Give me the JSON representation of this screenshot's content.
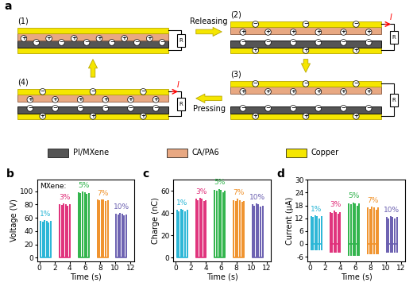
{
  "diagram": {
    "panel_label": "a",
    "positive": "+",
    "negative": "−",
    "resistor": "R",
    "states": [
      {
        "label": "(1)"
      },
      {
        "label": "(2)",
        "current": "I"
      },
      {
        "label": "(3)"
      },
      {
        "label": "(4)",
        "current": "I"
      }
    ],
    "transitions": [
      "Releasing",
      "Pressing"
    ],
    "legend": [
      {
        "name": "PI/MXene",
        "color": "#555555"
      },
      {
        "name": "CA/PA6",
        "color": "#e8a882"
      },
      {
        "name": "Copper",
        "color": "#f5e600"
      }
    ]
  },
  "chart_data": [
    {
      "type": "spike",
      "panel_label": "b",
      "annotation": "MXene:",
      "xlabel": "Time (s)",
      "ylabel": "Voltage (V)",
      "xlim": [
        -0.3,
        12.5
      ],
      "xticks": [
        0,
        2,
        4,
        6,
        8,
        10,
        12
      ],
      "ylim": [
        -5,
        117
      ],
      "yticks": [
        0,
        20,
        40,
        60,
        80,
        100
      ],
      "series": [
        {
          "name": "1%",
          "color": "#29b6d6",
          "x": [
            0.15,
            0.42,
            0.69,
            0.96,
            1.23,
            1.5
          ],
          "values": [
            55,
            54,
            56,
            55,
            53,
            55
          ]
        },
        {
          "name": "3%",
          "color": "#e0307a",
          "x": [
            2.65,
            2.92,
            3.19,
            3.46,
            3.73,
            4.0
          ],
          "values": [
            80,
            79,
            81,
            80,
            78,
            80
          ]
        },
        {
          "name": "5%",
          "color": "#2fb34a",
          "x": [
            5.15,
            5.42,
            5.69,
            5.96,
            6.23,
            6.5
          ],
          "values": [
            98,
            97,
            99,
            98,
            96,
            97
          ]
        },
        {
          "name": "7%",
          "color": "#f0922b",
          "x": [
            7.65,
            7.92,
            8.19,
            8.46,
            8.73,
            9.0
          ],
          "values": [
            87,
            86,
            88,
            87,
            85,
            86
          ]
        },
        {
          "name": "10%",
          "color": "#6a5fb0",
          "x": [
            10.1,
            10.37,
            10.64,
            10.91,
            11.18,
            11.45
          ],
          "values": [
            66,
            65,
            67,
            66,
            64,
            65
          ]
        }
      ]
    },
    {
      "type": "spike",
      "panel_label": "c",
      "xlabel": "Time (s)",
      "ylabel": "Charge (nC)",
      "xlim": [
        -0.3,
        12.5
      ],
      "xticks": [
        0,
        2,
        4,
        6,
        8,
        10,
        12
      ],
      "ylim": [
        -3,
        70
      ],
      "yticks": [
        0,
        20,
        40,
        60
      ],
      "series": [
        {
          "name": "1%",
          "color": "#29b6d6",
          "x": [
            0.15,
            0.42,
            0.69,
            0.96,
            1.23,
            1.5
          ],
          "values": [
            43,
            42,
            44,
            43,
            42,
            43
          ]
        },
        {
          "name": "3%",
          "color": "#e0307a",
          "x": [
            2.65,
            2.92,
            3.19,
            3.46,
            3.73,
            4.0
          ],
          "values": [
            53,
            52,
            54,
            53,
            51,
            52
          ]
        },
        {
          "name": "5%",
          "color": "#2fb34a",
          "x": [
            5.15,
            5.42,
            5.69,
            5.96,
            6.23,
            6.5
          ],
          "values": [
            61,
            60,
            62,
            61,
            59,
            60
          ]
        },
        {
          "name": "7%",
          "color": "#f0922b",
          "x": [
            7.65,
            7.92,
            8.19,
            8.46,
            8.73,
            9.0
          ],
          "values": [
            52,
            51,
            53,
            52,
            50,
            51
          ]
        },
        {
          "name": "10%",
          "color": "#6a5fb0",
          "x": [
            10.1,
            10.37,
            10.64,
            10.91,
            11.18,
            11.45
          ],
          "values": [
            48,
            47,
            49,
            48,
            46,
            47
          ]
        }
      ]
    },
    {
      "type": "spike",
      "panel_label": "d",
      "xlabel": "Time (s)",
      "ylabel": "Current (μA)",
      "xlim": [
        -0.3,
        12.5
      ],
      "xticks": [
        0,
        2,
        4,
        6,
        8,
        10,
        12
      ],
      "ylim": [
        -8,
        30
      ],
      "yticks": [
        -6,
        0,
        6,
        12,
        18,
        24,
        30
      ],
      "series": [
        {
          "name": "1%",
          "color": "#29b6d6",
          "x": [
            0.15,
            0.42,
            0.69,
            0.96,
            1.23,
            1.5
          ],
          "values": [
            13,
            12.5,
            13.5,
            13,
            12,
            13
          ],
          "min_values": [
            -3,
            -3,
            -3,
            -3,
            -3,
            -3
          ]
        },
        {
          "name": "3%",
          "color": "#e0307a",
          "x": [
            2.65,
            2.92,
            3.19,
            3.46,
            3.73,
            4.0
          ],
          "values": [
            15,
            14.5,
            15.5,
            15,
            14,
            15
          ],
          "min_values": [
            -4,
            -4,
            -4,
            -4,
            -4,
            -4
          ]
        },
        {
          "name": "5%",
          "color": "#2fb34a",
          "x": [
            5.15,
            5.42,
            5.69,
            5.96,
            6.23,
            6.5
          ],
          "values": [
            19,
            18.5,
            19.5,
            19,
            18,
            19
          ],
          "min_values": [
            -5.5,
            -5.5,
            -5.5,
            -5.5,
            -5.5,
            -5.5
          ]
        },
        {
          "name": "7%",
          "color": "#f0922b",
          "x": [
            7.65,
            7.92,
            8.19,
            8.46,
            8.73,
            9.0
          ],
          "values": [
            17,
            16.5,
            17.5,
            17,
            16,
            17
          ],
          "min_values": [
            -5,
            -5,
            -5,
            -5,
            -5,
            -5
          ]
        },
        {
          "name": "10%",
          "color": "#6a5fb0",
          "x": [
            10.1,
            10.37,
            10.64,
            10.91,
            11.18,
            11.45
          ],
          "values": [
            12.5,
            12,
            13,
            12.5,
            12,
            12.5
          ],
          "min_values": [
            -4,
            -4,
            -4,
            -4,
            -4,
            -4
          ]
        }
      ]
    }
  ]
}
